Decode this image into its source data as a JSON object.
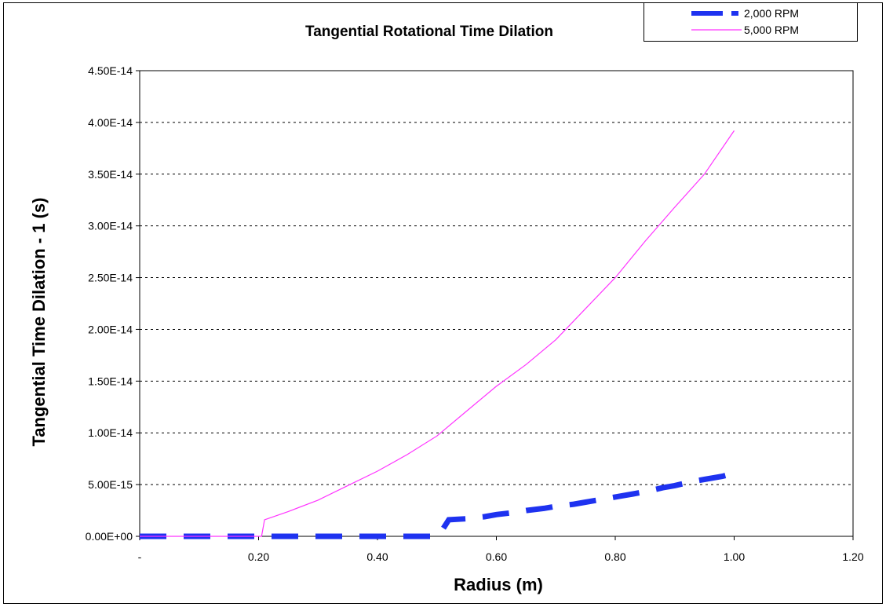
{
  "chart_data": {
    "type": "line",
    "title": "Tangential Rotational Time Dilation",
    "xlabel": "Radius (m)",
    "ylabel": "Tangential Time Dilation - 1 (s)",
    "xlim": [
      0,
      1.2
    ],
    "ylim": [
      0,
      4.5e-14
    ],
    "x_ticks": [
      "-",
      "0.20",
      "0.40",
      "0.60",
      "0.80",
      "1.00",
      "1.20"
    ],
    "y_ticks": [
      "0.00E+00",
      "5.00E-15",
      "1.00E-14",
      "1.50E-14",
      "2.00E-14",
      "2.50E-14",
      "3.00E-14",
      "3.50E-14",
      "4.00E-14",
      "4.50E-14"
    ],
    "grid": "horizontal dashed",
    "legend_position": "top-right",
    "series": [
      {
        "name": "2,000 RPM",
        "color": "#1e32f0",
        "style": "thick dashed",
        "x": [
          0.0,
          0.05,
          0.1,
          0.15,
          0.2,
          0.25,
          0.3,
          0.35,
          0.4,
          0.45,
          0.5,
          0.51,
          0.52,
          0.55,
          0.58,
          0.6,
          0.63,
          0.65,
          0.68,
          0.7,
          0.73,
          0.75,
          0.78,
          0.8,
          0.83,
          0.85,
          0.88,
          0.9,
          0.93,
          0.95,
          0.98,
          1.0
        ],
        "y": [
          0,
          0,
          0,
          0,
          0,
          0,
          0,
          0,
          0,
          0,
          0,
          7e-16,
          1.6e-15,
          1.7e-15,
          1.9e-15,
          2.1e-15,
          2.3e-15,
          2.5e-15,
          2.7e-15,
          2.9e-15,
          3.1e-15,
          3.3e-15,
          3.6e-15,
          3.8e-15,
          4.1e-15,
          4.3e-15,
          4.7e-15,
          4.9e-15,
          5.3e-15,
          5.5e-15,
          5.8e-15,
          6.1e-15
        ]
      },
      {
        "name": "5,000 RPM",
        "color": "#ff33ff",
        "style": "thin solid",
        "x": [
          0.0,
          0.05,
          0.1,
          0.15,
          0.2,
          0.205,
          0.21,
          0.25,
          0.3,
          0.35,
          0.4,
          0.45,
          0.5,
          0.55,
          0.6,
          0.65,
          0.7,
          0.75,
          0.8,
          0.85,
          0.9,
          0.95,
          1.0
        ],
        "y": [
          0,
          0,
          0,
          0,
          0,
          0,
          1.6e-15,
          2.4e-15,
          3.5e-15,
          4.9e-15,
          6.3e-15,
          7.9e-15,
          9.7e-15,
          1.21e-14,
          1.45e-14,
          1.66e-14,
          1.9e-14,
          2.2e-14,
          2.5e-14,
          2.85e-14,
          3.18e-14,
          3.5e-14,
          3.92e-14
        ]
      }
    ]
  }
}
